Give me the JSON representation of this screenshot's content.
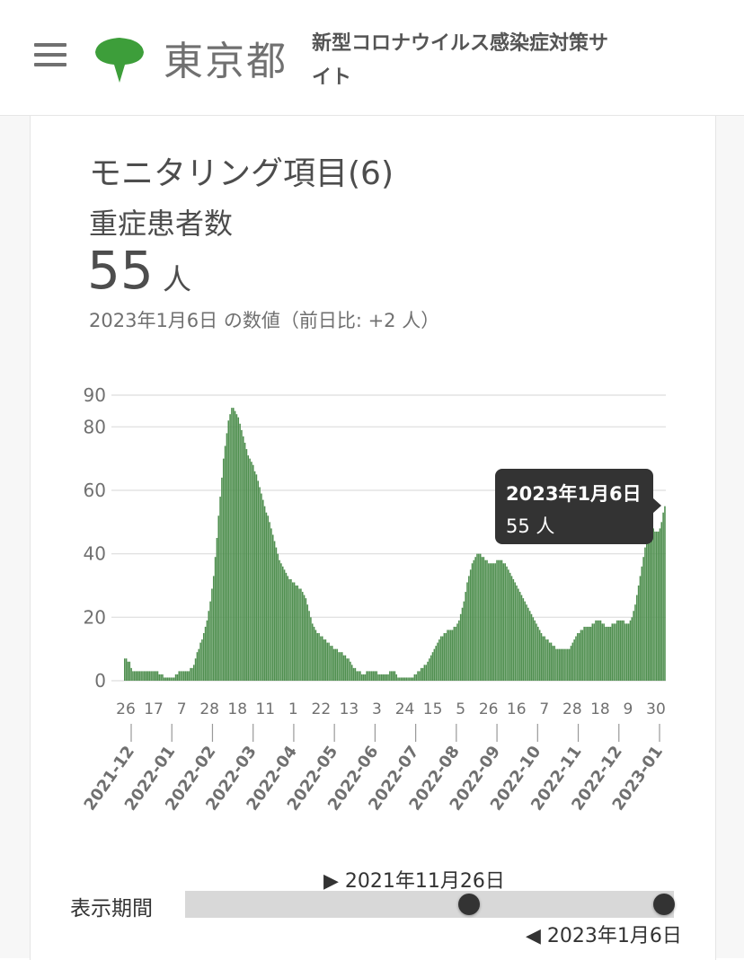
{
  "header": {
    "menu_icon": "hamburger-menu-icon",
    "logo_icon": "ginkgo-leaf-icon",
    "logo_text": "東京都",
    "site_title": "新型コロナウイルス感染症対策サイト",
    "logo_color": "#3d9e3a"
  },
  "card": {
    "title": "モニタリング項目(6)",
    "subtitle": "重症患者数",
    "value": "55",
    "unit": "人",
    "date_note": "2023年1月6日 の数値（前日比: +2 人）"
  },
  "tooltip": {
    "date": "2023年1月6日",
    "value": "55 人"
  },
  "chart_data": {
    "type": "bar",
    "bar_color": "#4f8f4f",
    "ylim": [
      0,
      90
    ],
    "yticks": [
      0,
      20,
      40,
      60,
      80,
      90
    ],
    "xtick_labels": [
      "26",
      "17",
      "7",
      "28",
      "18",
      "11",
      "1",
      "22",
      "13",
      "3",
      "24",
      "15",
      "5",
      "26",
      "16",
      "7",
      "28",
      "18",
      "9",
      "30"
    ],
    "month_labels": [
      "2021-12",
      "2022-01",
      "2022-02",
      "2022-03",
      "2022-04",
      "2022-05",
      "2022-06",
      "2022-07",
      "2022-08",
      "2022-09",
      "2022-10",
      "2022-11",
      "2022-12",
      "2023-01"
    ],
    "start_date": "2021-11-26",
    "end_date": "2023-01-06",
    "values": [
      7,
      7,
      6,
      6,
      4,
      3,
      3,
      3,
      3,
      3,
      3,
      3,
      3,
      3,
      3,
      3,
      3,
      3,
      3,
      3,
      3,
      2,
      2,
      2,
      1,
      1,
      1,
      1,
      1,
      1,
      1,
      2,
      2,
      3,
      3,
      3,
      3,
      3,
      3,
      3,
      4,
      4,
      5,
      7,
      9,
      10,
      12,
      13,
      15,
      17,
      19,
      22,
      25,
      29,
      33,
      39,
      45,
      52,
      58,
      64,
      70,
      74,
      78,
      82,
      84,
      86,
      86,
      85,
      84,
      83,
      81,
      79,
      77,
      75,
      73,
      71,
      70,
      69,
      68,
      66,
      65,
      63,
      61,
      59,
      57,
      55,
      53,
      52,
      50,
      48,
      46,
      44,
      42,
      40,
      38,
      37,
      36,
      35,
      34,
      33,
      32,
      32,
      31,
      31,
      30,
      30,
      29,
      29,
      28,
      27,
      26,
      24,
      22,
      20,
      18,
      17,
      16,
      15,
      15,
      14,
      14,
      13,
      13,
      12,
      12,
      11,
      11,
      10,
      10,
      10,
      9,
      9,
      9,
      8,
      8,
      7,
      7,
      6,
      5,
      4,
      4,
      3,
      3,
      3,
      2,
      2,
      2,
      3,
      3,
      3,
      3,
      3,
      3,
      3,
      2,
      2,
      2,
      2,
      2,
      2,
      2,
      3,
      3,
      3,
      3,
      2,
      1,
      1,
      1,
      1,
      1,
      1,
      1,
      1,
      1,
      1,
      2,
      2,
      3,
      3,
      4,
      4,
      5,
      5,
      6,
      7,
      8,
      9,
      10,
      11,
      12,
      13,
      14,
      14,
      15,
      15,
      16,
      16,
      16,
      16,
      17,
      17,
      18,
      19,
      21,
      23,
      25,
      28,
      31,
      33,
      35,
      37,
      38,
      39,
      40,
      40,
      40,
      39,
      39,
      38,
      38,
      37,
      37,
      37,
      37,
      37,
      38,
      38,
      38,
      38,
      37,
      37,
      36,
      35,
      34,
      33,
      32,
      31,
      30,
      29,
      28,
      27,
      26,
      25,
      24,
      23,
      22,
      21,
      20,
      19,
      18,
      17,
      16,
      15,
      14,
      14,
      13,
      13,
      12,
      12,
      11,
      11,
      10,
      10,
      10,
      10,
      10,
      10,
      10,
      10,
      10,
      11,
      12,
      13,
      14,
      15,
      15,
      16,
      16,
      17,
      17,
      17,
      17,
      17,
      18,
      18,
      19,
      19,
      19,
      19,
      18,
      18,
      17,
      17,
      17,
      17,
      18,
      18,
      18,
      19,
      19,
      19,
      19,
      19,
      18,
      18,
      18,
      19,
      20,
      22,
      24,
      27,
      30,
      33,
      36,
      39,
      42,
      44,
      46,
      47,
      48,
      48,
      47,
      47,
      47,
      48,
      50,
      53,
      55
    ]
  },
  "slider": {
    "label": "表示期間",
    "start_label": "▶ 2021年11月26日",
    "end_label": "◀ 2023年1月6日",
    "start_fraction": 0.58,
    "end_fraction": 0.98
  }
}
